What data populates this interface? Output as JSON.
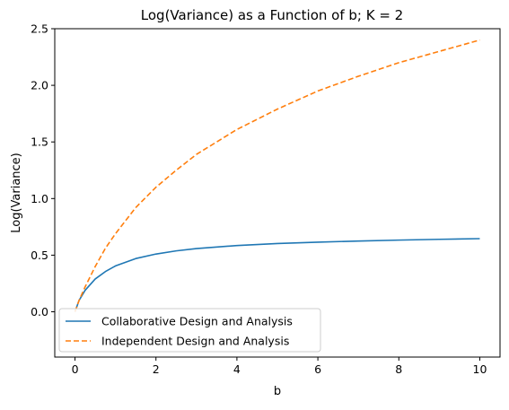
{
  "chart_data": {
    "type": "line",
    "title": "Log(Variance) as a Function of b; K = 2",
    "xlabel": "b",
    "ylabel": "Log(Variance)",
    "xlim": [
      -0.5,
      10.5
    ],
    "ylim": [
      -0.4,
      2.5
    ],
    "xticks": [
      0,
      2,
      4,
      6,
      8,
      10
    ],
    "xtick_labels": [
      "0",
      "2",
      "4",
      "6",
      "8",
      "10"
    ],
    "yticks": [
      0.0,
      0.5,
      1.0,
      1.5,
      2.0,
      2.5
    ],
    "ytick_labels": [
      "0.0",
      "0.5",
      "1.0",
      "1.5",
      "2.0",
      "2.5"
    ],
    "grid": false,
    "legend_position": "lower-left",
    "series": [
      {
        "name": "Collaborative Design and Analysis",
        "color": "#1f77b4",
        "dash": "solid",
        "x": [
          0,
          0.1,
          0.25,
          0.5,
          0.75,
          1,
          1.5,
          2,
          2.5,
          3,
          4,
          5,
          6,
          7,
          8,
          9,
          10
        ],
        "y": [
          0,
          0.1,
          0.19,
          0.29,
          0.355,
          0.405,
          0.47,
          0.51,
          0.538,
          0.558,
          0.585,
          0.603,
          0.615,
          0.625,
          0.633,
          0.64,
          0.646
        ]
      },
      {
        "name": "Independent Design and Analysis",
        "color": "#ff7f0e",
        "dash": "dashed",
        "x": [
          0,
          0.1,
          0.25,
          0.5,
          0.75,
          1,
          1.5,
          2,
          2.5,
          3,
          4,
          5,
          6,
          7,
          8,
          9,
          10
        ],
        "y": [
          0,
          0.1,
          0.22,
          0.4,
          0.56,
          0.69,
          0.92,
          1.1,
          1.25,
          1.39,
          1.61,
          1.79,
          1.95,
          2.08,
          2.2,
          2.3,
          2.4
        ]
      }
    ]
  }
}
